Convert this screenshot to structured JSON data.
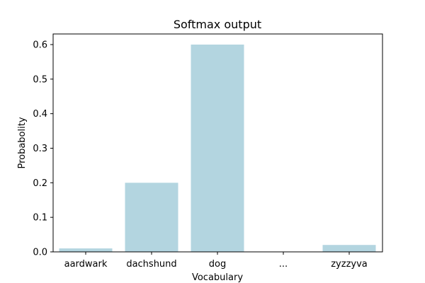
{
  "chart_data": {
    "type": "bar",
    "title": "Softmax output",
    "xlabel": "Vocabulary",
    "ylabel": "Probabolity",
    "categories": [
      "aardwark",
      "dachshund",
      "dog",
      "...",
      "zyzzyva"
    ],
    "values": [
      0.01,
      0.2,
      0.6,
      0.0,
      0.02
    ],
    "ylim": [
      0,
      0.6
    ],
    "yticks": [
      "0.0",
      "0.1",
      "0.2",
      "0.3",
      "0.4",
      "0.5",
      "0.6"
    ],
    "bar_color": "#b3d5e0",
    "grid": false,
    "legend": "none"
  }
}
